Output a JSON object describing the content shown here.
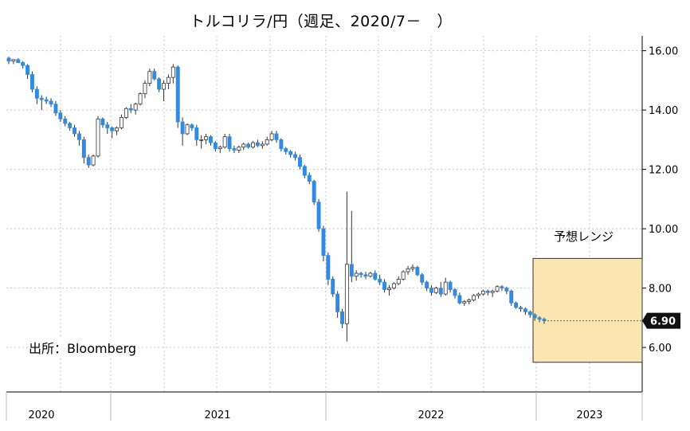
{
  "title": "トルコリラ/円（週足、2020/7－　）",
  "source": "出所：Bloomberg",
  "range_label": "予想レンジ",
  "colors": {
    "up": "#ffffff",
    "down": "#2f8be3",
    "wick": "#333333",
    "range_fill": "#fbe6b2",
    "range_stroke": "#333333",
    "grid": "#c8c8c8",
    "last_badge": "#111111"
  },
  "chart_data": {
    "type": "candlestick",
    "ylim": [
      4.5,
      16.5
    ],
    "yticks": [
      "6.00",
      "8.00",
      "10.00",
      "12.00",
      "14.00",
      "16.00"
    ],
    "xticks": [
      "2020",
      "2021",
      "2022",
      "2023"
    ],
    "last_value": "6.90",
    "forecast_range": {
      "low": 5.5,
      "high": 9.0
    },
    "candles": [
      [
        15.75,
        15.8,
        15.55,
        15.65
      ],
      [
        15.65,
        15.7,
        15.55,
        15.7
      ],
      [
        15.7,
        15.75,
        15.6,
        15.6
      ],
      [
        15.6,
        15.65,
        15.4,
        15.5
      ],
      [
        15.5,
        15.55,
        15.05,
        15.2
      ],
      [
        15.2,
        15.3,
        14.6,
        14.7
      ],
      [
        14.7,
        14.8,
        14.2,
        14.4
      ],
      [
        14.4,
        14.5,
        14.0,
        14.35
      ],
      [
        14.35,
        14.45,
        14.2,
        14.3
      ],
      [
        14.3,
        14.4,
        14.1,
        14.2
      ],
      [
        14.2,
        14.3,
        13.8,
        13.9
      ],
      [
        13.9,
        14.0,
        13.6,
        13.7
      ],
      [
        13.7,
        13.8,
        13.45,
        13.55
      ],
      [
        13.55,
        13.6,
        13.3,
        13.4
      ],
      [
        13.4,
        13.5,
        13.1,
        13.2
      ],
      [
        13.2,
        13.3,
        12.8,
        13.0
      ],
      [
        13.0,
        13.1,
        12.2,
        12.4
      ],
      [
        12.4,
        12.5,
        12.05,
        12.15
      ],
      [
        12.15,
        12.5,
        12.1,
        12.45
      ],
      [
        12.45,
        13.8,
        12.4,
        13.7
      ],
      [
        13.7,
        13.75,
        13.4,
        13.5
      ],
      [
        13.5,
        13.6,
        13.2,
        13.4
      ],
      [
        13.4,
        13.45,
        13.05,
        13.3
      ],
      [
        13.3,
        13.45,
        13.15,
        13.4
      ],
      [
        13.4,
        13.85,
        13.35,
        13.75
      ],
      [
        13.75,
        14.1,
        13.7,
        14.05
      ],
      [
        14.05,
        14.2,
        13.9,
        14.0
      ],
      [
        14.0,
        14.25,
        13.85,
        14.2
      ],
      [
        14.2,
        14.6,
        14.15,
        14.55
      ],
      [
        14.55,
        15.0,
        14.4,
        14.9
      ],
      [
        14.9,
        15.4,
        14.8,
        15.3
      ],
      [
        15.3,
        15.4,
        15.0,
        15.05
      ],
      [
        15.05,
        15.1,
        14.6,
        14.7
      ],
      [
        14.7,
        15.0,
        14.3,
        14.9
      ],
      [
        14.9,
        15.2,
        14.7,
        15.1
      ],
      [
        15.1,
        15.55,
        14.9,
        15.45
      ],
      [
        15.45,
        15.5,
        13.4,
        13.6
      ],
      [
        13.6,
        13.75,
        12.8,
        13.2
      ],
      [
        13.2,
        13.55,
        13.15,
        13.5
      ],
      [
        13.5,
        13.55,
        13.3,
        13.4
      ],
      [
        13.4,
        13.5,
        12.8,
        13.0
      ],
      [
        13.0,
        13.15,
        12.7,
        13.0
      ],
      [
        13.0,
        13.2,
        12.85,
        13.1
      ],
      [
        13.1,
        13.15,
        12.8,
        12.9
      ],
      [
        12.9,
        12.95,
        12.6,
        12.7
      ],
      [
        12.7,
        12.8,
        12.55,
        12.75
      ],
      [
        12.75,
        13.2,
        12.7,
        13.1
      ],
      [
        13.1,
        13.2,
        12.6,
        12.7
      ],
      [
        12.7,
        12.8,
        12.55,
        12.65
      ],
      [
        12.65,
        12.8,
        12.55,
        12.75
      ],
      [
        12.75,
        12.9,
        12.65,
        12.85
      ],
      [
        12.85,
        12.9,
        12.7,
        12.75
      ],
      [
        12.75,
        12.95,
        12.7,
        12.9
      ],
      [
        12.9,
        13.0,
        12.75,
        12.8
      ],
      [
        12.8,
        12.95,
        12.7,
        12.85
      ],
      [
        12.85,
        13.1,
        12.8,
        13.0
      ],
      [
        13.0,
        13.3,
        12.95,
        13.2
      ],
      [
        13.2,
        13.3,
        12.9,
        13.0
      ],
      [
        13.0,
        13.05,
        12.6,
        12.7
      ],
      [
        12.7,
        12.75,
        12.5,
        12.6
      ],
      [
        12.6,
        12.65,
        12.4,
        12.5
      ],
      [
        12.5,
        12.6,
        12.3,
        12.4
      ],
      [
        12.4,
        12.5,
        12.0,
        12.1
      ],
      [
        12.1,
        12.15,
        11.7,
        11.8
      ],
      [
        11.8,
        11.9,
        11.5,
        11.6
      ],
      [
        11.6,
        11.65,
        10.8,
        10.9
      ],
      [
        10.9,
        11.0,
        9.9,
        10.0
      ],
      [
        10.0,
        10.1,
        8.9,
        9.1
      ],
      [
        9.1,
        9.2,
        8.1,
        8.3
      ],
      [
        8.3,
        8.4,
        7.7,
        7.8
      ],
      [
        7.8,
        7.9,
        7.0,
        7.2
      ],
      [
        7.2,
        7.3,
        6.65,
        6.8
      ],
      [
        6.8,
        11.25,
        6.2,
        8.8
      ],
      [
        8.8,
        10.6,
        8.2,
        8.4
      ],
      [
        8.4,
        8.6,
        8.25,
        8.5
      ],
      [
        8.5,
        8.55,
        8.35,
        8.45
      ],
      [
        8.45,
        8.55,
        8.3,
        8.4
      ],
      [
        8.4,
        8.55,
        8.35,
        8.5
      ],
      [
        8.5,
        8.6,
        8.25,
        8.3
      ],
      [
        8.3,
        8.45,
        8.1,
        8.2
      ],
      [
        8.2,
        8.3,
        7.85,
        7.95
      ],
      [
        7.95,
        8.1,
        7.75,
        8.0
      ],
      [
        8.0,
        8.2,
        7.95,
        8.15
      ],
      [
        8.15,
        8.4,
        8.1,
        8.3
      ],
      [
        8.3,
        8.6,
        8.25,
        8.55
      ],
      [
        8.55,
        8.75,
        8.45,
        8.65
      ],
      [
        8.65,
        8.8,
        8.55,
        8.7
      ],
      [
        8.7,
        8.75,
        8.4,
        8.45
      ],
      [
        8.45,
        8.5,
        8.1,
        8.2
      ],
      [
        8.2,
        8.25,
        7.9,
        8.0
      ],
      [
        8.0,
        8.1,
        7.75,
        7.85
      ],
      [
        7.85,
        8.05,
        7.8,
        8.0
      ],
      [
        8.0,
        8.2,
        7.7,
        7.8
      ],
      [
        7.8,
        8.35,
        7.75,
        8.2
      ],
      [
        8.2,
        8.25,
        7.85,
        7.95
      ],
      [
        7.95,
        8.0,
        7.65,
        7.75
      ],
      [
        7.75,
        7.85,
        7.45,
        7.5
      ],
      [
        7.5,
        7.6,
        7.4,
        7.55
      ],
      [
        7.55,
        7.65,
        7.45,
        7.6
      ],
      [
        7.6,
        7.8,
        7.55,
        7.75
      ],
      [
        7.75,
        7.85,
        7.65,
        7.8
      ],
      [
        7.8,
        7.95,
        7.75,
        7.9
      ],
      [
        7.9,
        7.95,
        7.75,
        7.85
      ],
      [
        7.85,
        7.95,
        7.7,
        7.9
      ],
      [
        7.9,
        8.1,
        7.85,
        8.05
      ],
      [
        8.05,
        8.1,
        7.9,
        8.0
      ],
      [
        8.0,
        8.05,
        7.8,
        7.9
      ],
      [
        7.9,
        7.95,
        7.4,
        7.5
      ],
      [
        7.5,
        7.55,
        7.3,
        7.35
      ],
      [
        7.35,
        7.4,
        7.2,
        7.3
      ],
      [
        7.3,
        7.35,
        7.1,
        7.2
      ],
      [
        7.2,
        7.25,
        7.0,
        7.1
      ],
      [
        7.1,
        7.15,
        6.9,
        7.0
      ],
      [
        7.0,
        7.05,
        6.85,
        6.95
      ],
      [
        6.95,
        7.0,
        6.8,
        6.9
      ]
    ]
  }
}
